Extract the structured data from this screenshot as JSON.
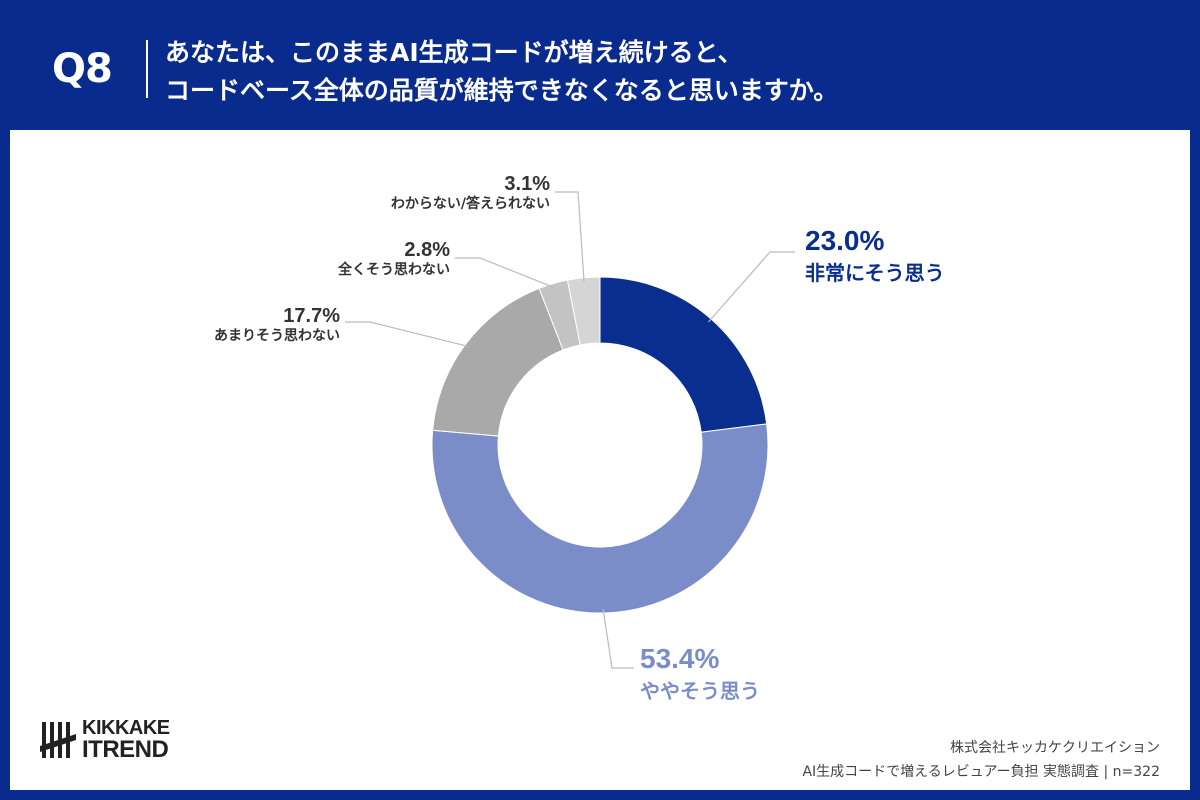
{
  "header": {
    "question_no": "Q8",
    "title_line1": "あなたは、このままAI生成コードが増え続けると、",
    "title_line2": "コードベース全体の品質が維持できなくなると思いますか。"
  },
  "colors": {
    "background": "#0a2b8e",
    "card": "#ffffff"
  },
  "chart_data": {
    "type": "pie",
    "variant": "donut",
    "start": "top, clockwise",
    "slices": [
      {
        "label": "非常にそう思う",
        "value": 23.0,
        "value_label": "23.0%",
        "color": "#0a2e8f",
        "label_color": "#0a2e8f"
      },
      {
        "label": "ややそう思う",
        "value": 53.4,
        "value_label": "53.4%",
        "color": "#7b8dc9",
        "label_color": "#7b8dc9"
      },
      {
        "label": "あまりそう思わない",
        "value": 17.7,
        "value_label": "17.7%",
        "color": "#a9a9a9",
        "label_color": "#333333"
      },
      {
        "label": "全くそう思わない",
        "value": 2.8,
        "value_label": "2.8%",
        "color": "#c3c3c3",
        "label_color": "#333333"
      },
      {
        "label": "わからない/答えられない",
        "value": 3.1,
        "value_label": "3.1%",
        "color": "#d5d5d5",
        "label_color": "#333333"
      }
    ]
  },
  "logo": {
    "line1": "KIKKAKE",
    "line2": "ITREND"
  },
  "footer": {
    "company": "株式会社キッカケクリエイション",
    "survey": "AI生成コードで増えるレビュアー負担 実態調査 | n=322"
  }
}
